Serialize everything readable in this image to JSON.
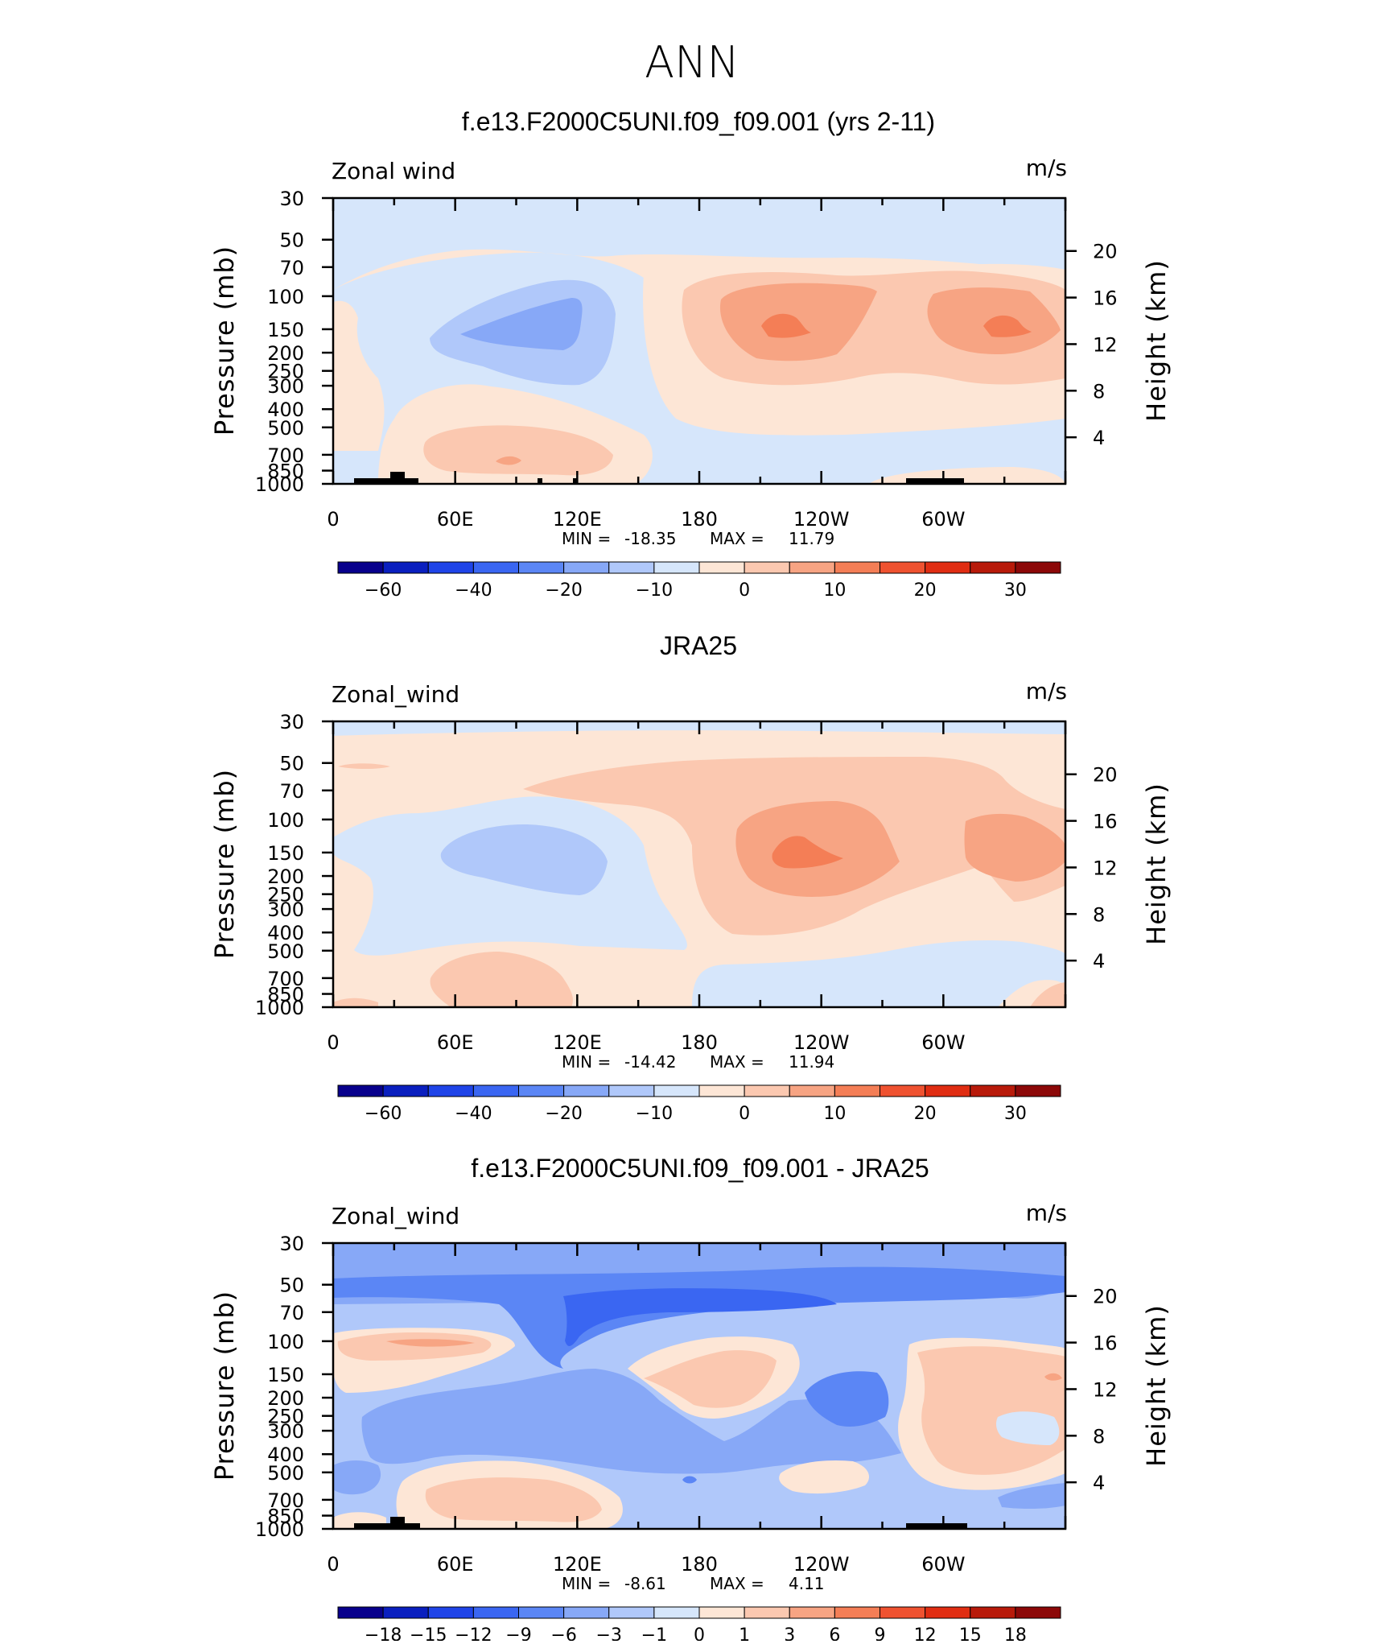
{
  "title": "ANN",
  "chart_data": [
    {
      "type": "heatmap",
      "title": "f.e13.F2000C5UNI.f09_f09.001 (yrs 2-11)",
      "variable": "Zonal wind",
      "units": "m/s",
      "ylabel": "Pressure (mb)",
      "y2label": "Height (km)",
      "x_ticks": [
        "0",
        "60E",
        "120E",
        "180",
        "120W",
        "60W"
      ],
      "y_ticks": [
        "30",
        "50",
        "70",
        "100",
        "150",
        "200",
        "250",
        "300",
        "400",
        "500",
        "700",
        "850",
        "1000"
      ],
      "y2_ticks": [
        "20",
        "16",
        "12",
        "8",
        "4"
      ],
      "min_label": "MIN =",
      "min_value": "-18.35",
      "max_label": "MAX =",
      "max_value": "11.79",
      "colorbar_labels": [
        "-60",
        "-40",
        "-20",
        "-10",
        "0",
        "10",
        "20",
        "30"
      ],
      "colorbar_colors": [
        "#08008c",
        "#0a1fbf",
        "#1f44e8",
        "#3a66f2",
        "#5b86f5",
        "#87a8f7",
        "#b0c8fa",
        "#d6e6fb",
        "#fde6d6",
        "#fbc8b0",
        "#f7a483",
        "#f47e56",
        "#ef5230",
        "#e02d12",
        "#b81a0a",
        "#8c0808"
      ],
      "features": [
        {
          "shape": "negative core",
          "lon": "60E-120E",
          "p": "100-200 mb",
          "level": "-10 to -20"
        },
        {
          "shape": "positive jet",
          "lon": "180-120W",
          "p": "100-200 mb",
          "level": "10 to 15"
        },
        {
          "shape": "positive jet",
          "lon": "60W-30W",
          "p": "100-200 mb",
          "level": "10 to 15"
        }
      ]
    },
    {
      "type": "heatmap",
      "title": "JRA25",
      "variable": "Zonal_wind",
      "units": "m/s",
      "ylabel": "Pressure (mb)",
      "y2label": "Height (km)",
      "x_ticks": [
        "0",
        "60E",
        "120E",
        "180",
        "120W",
        "60W"
      ],
      "y_ticks": [
        "30",
        "50",
        "70",
        "100",
        "150",
        "200",
        "250",
        "300",
        "400",
        "500",
        "700",
        "850",
        "1000"
      ],
      "y2_ticks": [
        "20",
        "16",
        "12",
        "8",
        "4"
      ],
      "min_label": "MIN =",
      "min_value": "-14.42",
      "max_label": "MAX =",
      "max_value": "11.94",
      "colorbar_labels": [
        "-60",
        "-40",
        "-20",
        "-10",
        "0",
        "10",
        "20",
        "30"
      ],
      "colorbar_colors": [
        "#08008c",
        "#0a1fbf",
        "#1f44e8",
        "#3a66f2",
        "#5b86f5",
        "#87a8f7",
        "#b0c8fa",
        "#d6e6fb",
        "#fde6d6",
        "#fbc8b0",
        "#f7a483",
        "#f47e56",
        "#ef5230",
        "#e02d12",
        "#b81a0a",
        "#8c0808"
      ],
      "features": [
        {
          "shape": "negative core",
          "lon": "60E-120E",
          "p": "100-200 mb",
          "level": "-10"
        },
        {
          "shape": "positive jet",
          "lon": "180-120W",
          "p": "100-200 mb",
          "level": "10 to 15"
        },
        {
          "shape": "positive jet",
          "lon": "60W-30W",
          "p": "100-200 mb",
          "level": "5 to 10"
        }
      ]
    },
    {
      "type": "heatmap",
      "title": "f.e13.F2000C5UNI.f09_f09.001 - JRA25",
      "variable": "Zonal_wind",
      "units": "m/s",
      "ylabel": "Pressure (mb)",
      "y2label": "Height (km)",
      "x_ticks": [
        "0",
        "60E",
        "120E",
        "180",
        "120W",
        "60W"
      ],
      "y_ticks": [
        "30",
        "50",
        "70",
        "100",
        "150",
        "200",
        "250",
        "300",
        "400",
        "500",
        "700",
        "850",
        "1000"
      ],
      "y2_ticks": [
        "20",
        "16",
        "12",
        "8",
        "4"
      ],
      "min_label": "MIN =",
      "min_value": "-8.61",
      "max_label": "MAX =",
      "max_value": "4.11",
      "colorbar_labels": [
        "-18",
        "-15",
        "-12",
        "-9",
        "-6",
        "-3",
        "-1",
        "0",
        "1",
        "3",
        "6",
        "9",
        "12",
        "15",
        "18"
      ],
      "colorbar_colors": [
        "#08008c",
        "#0a1fbf",
        "#1f44e8",
        "#3a66f2",
        "#5b86f5",
        "#87a8f7",
        "#b0c8fa",
        "#d6e6fb",
        "#fde6d6",
        "#fbc8b0",
        "#f7a483",
        "#f47e56",
        "#ef5230",
        "#e02d12",
        "#b81a0a",
        "#8c0808"
      ],
      "features": [
        {
          "shape": "negative band",
          "lon": "0-360",
          "p": "30-70 mb",
          "level": "-3 to -6"
        },
        {
          "shape": "negative region",
          "lon": "60E-180",
          "p": "100-850 mb",
          "level": "-1 to -3"
        },
        {
          "shape": "positive patch",
          "lon": "0-60E",
          "p": "100 mb",
          "level": "1 to 3"
        },
        {
          "shape": "positive region",
          "lon": "60W-0",
          "p": "100-700 mb",
          "level": "1"
        }
      ]
    }
  ]
}
